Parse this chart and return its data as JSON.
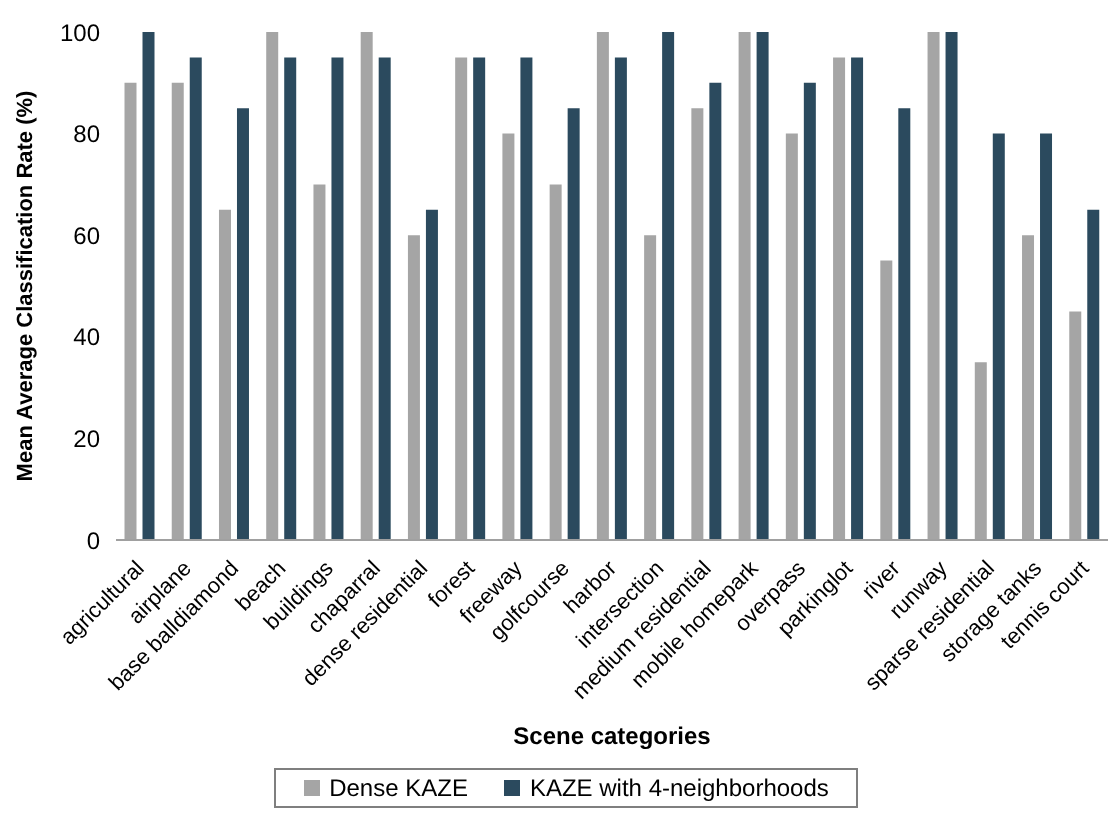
{
  "chart_data": {
    "type": "bar",
    "xlabel": "Scene categories",
    "ylabel": "Mean Average Classification Rate (%)",
    "categories": [
      "agricultural",
      "airplane",
      "base balldiamond",
      "beach",
      "buildings",
      "chaparral",
      "dense residential",
      "forest",
      "freeway",
      "golfcourse",
      "harbor",
      "intersection",
      "medium residential",
      "mobile homepark",
      "overpass",
      "parkinglot",
      "river",
      "runway",
      "sparse residential",
      "storage tanks",
      "tennis court"
    ],
    "series": [
      {
        "name": "Dense KAZE",
        "color": "#a5a5a5",
        "values": [
          90,
          90,
          65,
          100,
          70,
          100,
          60,
          95,
          80,
          70,
          100,
          60,
          85,
          100,
          80,
          95,
          55,
          100,
          35,
          60,
          45
        ]
      },
      {
        "name": "KAZE with 4-neighborhoods",
        "color": "#2b4a5e",
        "values": [
          100,
          95,
          85,
          95,
          95,
          95,
          65,
          95,
          95,
          85,
          95,
          100,
          90,
          100,
          90,
          95,
          85,
          100,
          80,
          80,
          65
        ]
      }
    ],
    "ylim": [
      0,
      100
    ],
    "yticks": [
      0,
      20,
      40,
      60,
      80,
      100
    ],
    "grid": false,
    "legend": "bottom"
  }
}
